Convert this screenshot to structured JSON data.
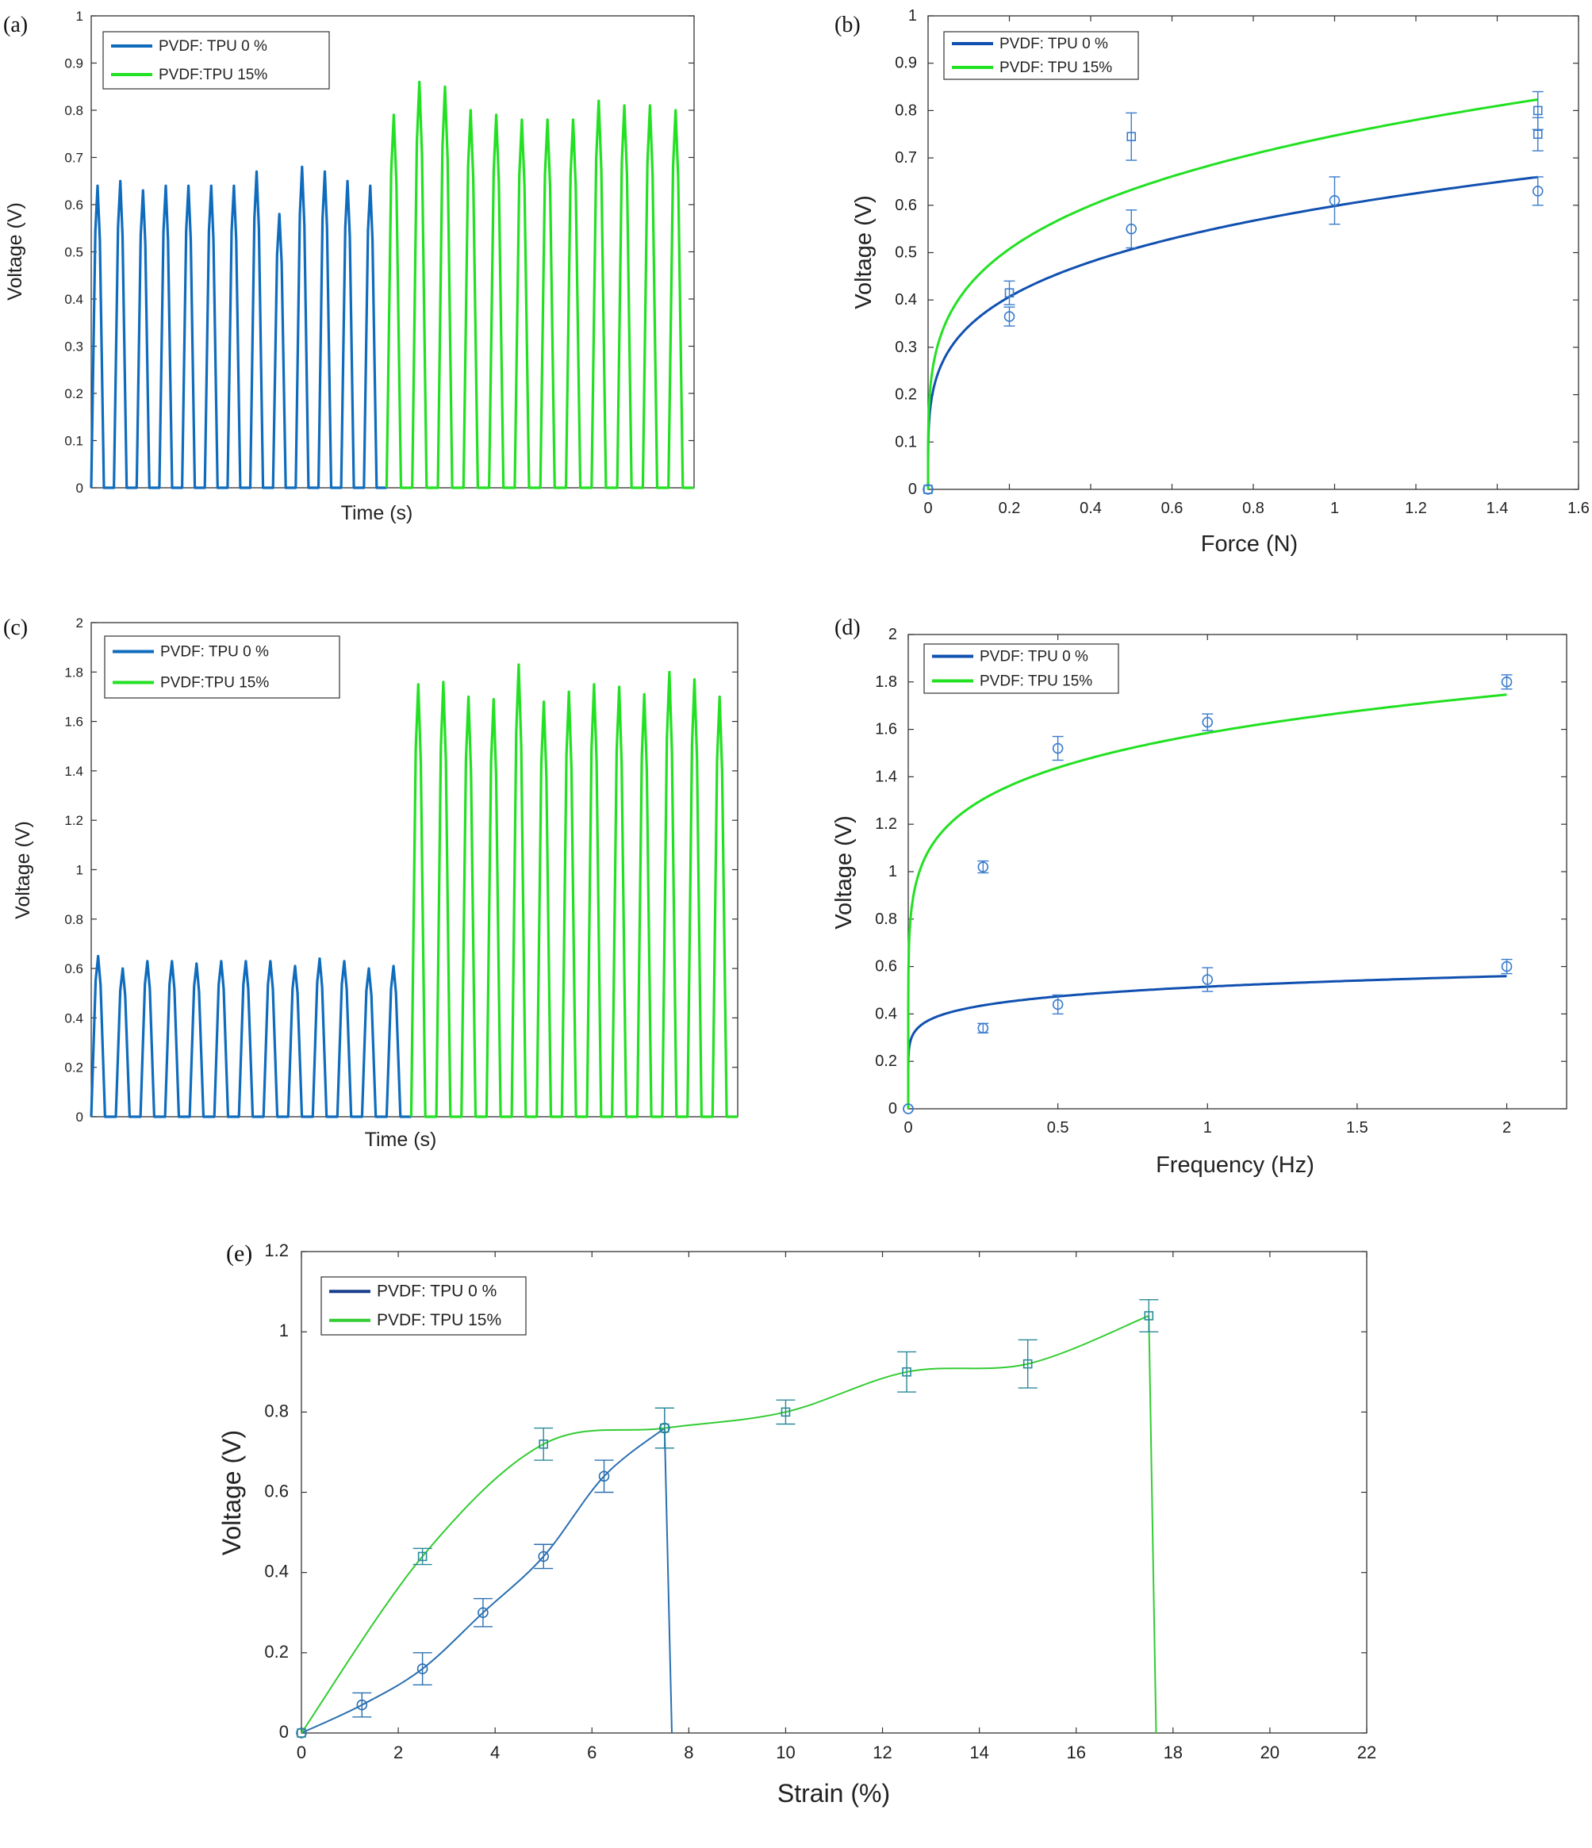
{
  "chart_data": [
    {
      "id": "a",
      "type": "line",
      "panel_label": "(a)",
      "xlabel": "Time (s)",
      "ylabel": "Voltage (V)",
      "ylim": [
        0,
        1
      ],
      "yticks": [
        0,
        0.1,
        0.2,
        0.3,
        0.4,
        0.5,
        0.6,
        0.7,
        0.8,
        0.9,
        1
      ],
      "ytick_labels": [
        "0",
        "0.1",
        "0.2",
        "0.3",
        "0.4",
        "0.5",
        "0.6",
        "0.7",
        "0.8",
        "0.9",
        "1"
      ],
      "xlim": [
        0,
        100
      ],
      "legend": [
        {
          "label": "PVDF: TPU 0 %",
          "color": "#0f6cbd"
        },
        {
          "label": "PVDF:TPU 15%",
          "color": "#22e022"
        }
      ],
      "series": [
        {
          "name": "PVDF: TPU 0 %",
          "color": "#0f6cbd",
          "start": 0,
          "end": 49,
          "peaks": [
            0.64,
            0.65,
            0.63,
            0.64,
            0.64,
            0.64,
            0.64,
            0.67,
            0.58,
            0.68,
            0.67,
            0.65,
            0.64
          ]
        },
        {
          "name": "PVDF:TPU 15%",
          "color": "#22e022",
          "start": 49,
          "end": 100,
          "peaks": [
            0.79,
            0.86,
            0.85,
            0.8,
            0.79,
            0.78,
            0.78,
            0.78,
            0.82,
            0.81,
            0.81,
            0.8
          ]
        }
      ]
    },
    {
      "id": "b",
      "type": "scatter",
      "panel_label": "(b)",
      "xlabel": "Force (N)",
      "ylabel": "Voltage (V)",
      "xlim": [
        0,
        1.6
      ],
      "ylim": [
        0,
        1
      ],
      "xticks": [
        0,
        0.2,
        0.4,
        0.6,
        0.8,
        1,
        1.2,
        1.4,
        1.6
      ],
      "xtick_labels": [
        "0",
        "0.2",
        "0.4",
        "0.6",
        "0.8",
        "1",
        "1.2",
        "1.4",
        "1.6"
      ],
      "yticks": [
        0,
        0.1,
        0.2,
        0.3,
        0.4,
        0.5,
        0.6,
        0.7,
        0.8,
        0.9,
        1
      ],
      "ytick_labels": [
        "0",
        "0.1",
        "0.2",
        "0.3",
        "0.4",
        "0.5",
        "0.6",
        "0.7",
        "0.8",
        "0.9",
        "1"
      ],
      "legend": [
        {
          "label": "PVDF: TPU 0 %",
          "color": "#1050b0"
        },
        {
          "label": "PVDF: TPU 15%",
          "color": "#22e022"
        }
      ],
      "series": [
        {
          "name": "PVDF: TPU 0 %",
          "color": "#1050b0",
          "marker": "circle",
          "x": [
            0,
            0.2,
            0.5,
            1,
            1.5
          ],
          "y": [
            0,
            0.365,
            0.55,
            0.61,
            0.63
          ],
          "err": [
            0,
            0.02,
            0.04,
            0.05,
            0.03
          ],
          "fit_a": 0.5985,
          "fit_b": 0.24
        },
        {
          "name": "PVDF: TPU 15%",
          "color": "#22e022",
          "marker": "square",
          "x": [
            0,
            0.2,
            0.5,
            1.5,
            1.5
          ],
          "y": [
            0,
            0.415,
            0.745,
            0.8,
            0.75
          ],
          "err": [
            0,
            0.025,
            0.05,
            0.04,
            0.035
          ],
          "fit_a": 0.747,
          "fit_b": 0.24
        }
      ]
    },
    {
      "id": "c",
      "type": "line",
      "panel_label": "(c)",
      "xlabel": "Time (s)",
      "ylabel": "Voltage (V)",
      "ylim": [
        0,
        2
      ],
      "yticks": [
        0,
        0.2,
        0.4,
        0.6,
        0.8,
        1,
        1.2,
        1.4,
        1.6,
        1.8,
        2
      ],
      "ytick_labels": [
        "0",
        "0.2",
        "0.4",
        "0.6",
        "0.8",
        "1",
        "1.2",
        "1.4",
        "1.6",
        "1.8",
        "2"
      ],
      "xlim": [
        0,
        100
      ],
      "legend": [
        {
          "label": "PVDF: TPU 0 %",
          "color": "#0f6cbd"
        },
        {
          "label": "PVDF:TPU 15%",
          "color": "#22e022"
        }
      ],
      "series": [
        {
          "name": "PVDF: TPU 0 %",
          "color": "#0f6cbd",
          "start": 0,
          "end": 49.5,
          "peaks": [
            0.65,
            0.6,
            0.63,
            0.63,
            0.62,
            0.63,
            0.63,
            0.63,
            0.61,
            0.64,
            0.63,
            0.6,
            0.61
          ]
        },
        {
          "name": "PVDF:TPU 15%",
          "color": "#22e022",
          "start": 49.5,
          "end": 100,
          "peaks": [
            1.75,
            1.76,
            1.7,
            1.69,
            1.83,
            1.68,
            1.72,
            1.75,
            1.74,
            1.71,
            1.8,
            1.77,
            1.7
          ]
        }
      ]
    },
    {
      "id": "d",
      "type": "scatter",
      "panel_label": "(d)",
      "xlabel": "Frequency (Hz)",
      "ylabel": "Voltage (V)",
      "xlim": [
        0,
        2.2
      ],
      "ylim": [
        0,
        2
      ],
      "xticks": [
        0,
        0.5,
        1,
        1.5,
        2
      ],
      "xtick_labels": [
        "0",
        "0.5",
        "1",
        "1.5",
        "2"
      ],
      "yticks": [
        0,
        0.2,
        0.4,
        0.6,
        0.8,
        1,
        1.2,
        1.4,
        1.6,
        1.8,
        2
      ],
      "ytick_labels": [
        "0",
        "0.2",
        "0.4",
        "0.6",
        "0.8",
        "1",
        "1.2",
        "1.4",
        "1.6",
        "1.8",
        "2"
      ],
      "legend": [
        {
          "label": "PVDF: TPU 0 %",
          "color": "#1050b0"
        },
        {
          "label": "PVDF: TPU 15%",
          "color": "#22e022"
        }
      ],
      "series": [
        {
          "name": "PVDF: TPU 0 %",
          "color": "#1050b0",
          "marker": "circle",
          "x": [
            0,
            0.25,
            0.5,
            1,
            2
          ],
          "y": [
            0,
            0.34,
            0.44,
            0.545,
            0.6
          ],
          "err": [
            0,
            0.02,
            0.04,
            0.05,
            0.03
          ],
          "fit_a": 0.515,
          "fit_b": 0.12
        },
        {
          "name": "PVDF: TPU 15%",
          "color": "#22e022",
          "marker": "circle",
          "x": [
            0,
            0.25,
            0.5,
            1,
            2
          ],
          "y": [
            0,
            1.02,
            1.52,
            1.63,
            1.8
          ],
          "err": [
            0,
            0.025,
            0.05,
            0.035,
            0.03
          ],
          "fit_a": 1.585,
          "fit_b": 0.14
        }
      ]
    },
    {
      "id": "e",
      "type": "line",
      "panel_label": "(e)",
      "xlabel": "Strain (%)",
      "ylabel": "Voltage (V)",
      "xlim": [
        0,
        22
      ],
      "ylim": [
        0,
        1.2
      ],
      "xticks": [
        0,
        2,
        4,
        6,
        8,
        10,
        12,
        14,
        16,
        18,
        20,
        22
      ],
      "xtick_labels": [
        "0",
        "2",
        "4",
        "6",
        "8",
        "10",
        "12",
        "14",
        "16",
        "18",
        "20",
        "22"
      ],
      "yticks": [
        0,
        0.2,
        0.4,
        0.6,
        0.8,
        1,
        1.2
      ],
      "ytick_labels": [
        "0",
        "0.2",
        "0.4",
        "0.6",
        "0.8",
        "1",
        "1.2"
      ],
      "legend": [
        {
          "label": "PVDF: TPU 0 %",
          "color": "#1a3e8c"
        },
        {
          "label": "PVDF: TPU 15%",
          "color": "#33cc33"
        }
      ],
      "series": [
        {
          "name": "PVDF: TPU 0 %",
          "color": "#2a6fb0",
          "marker": "circle",
          "x": [
            0,
            1.25,
            2.5,
            3.75,
            5,
            6.25,
            7.5
          ],
          "y": [
            0,
            0.07,
            0.16,
            0.3,
            0.44,
            0.64,
            0.76
          ],
          "err": [
            0,
            0.03,
            0.04,
            0.035,
            0.03,
            0.04,
            0.05
          ],
          "drop_x": 7.65
        },
        {
          "name": "PVDF: TPU 15%",
          "color": "#33cc33",
          "marker": "square",
          "x": [
            0,
            2.5,
            5,
            7.5,
            10,
            12.5,
            15,
            17.5
          ],
          "y": [
            0,
            0.44,
            0.72,
            0.76,
            0.8,
            0.9,
            0.92,
            1.04
          ],
          "err": [
            0,
            0.02,
            0.04,
            0.05,
            0.03,
            0.05,
            0.06,
            0.04
          ],
          "drop_x": 17.65
        }
      ]
    }
  ]
}
